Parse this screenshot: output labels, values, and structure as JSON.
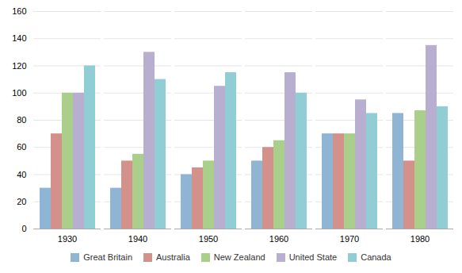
{
  "chart_data": {
    "type": "bar",
    "categories": [
      "1930",
      "1940",
      "1950",
      "1960",
      "1970",
      "1980"
    ],
    "series": [
      {
        "name": "Great Britain",
        "color": "#8fb4d4",
        "values": [
          30,
          30,
          40,
          50,
          70,
          85
        ]
      },
      {
        "name": "Australia",
        "color": "#d4908a",
        "values": [
          70,
          50,
          45,
          60,
          70,
          50
        ]
      },
      {
        "name": "New Zealand",
        "color": "#aacf8a",
        "values": [
          100,
          55,
          50,
          65,
          70,
          87
        ]
      },
      {
        "name": "United State",
        "color": "#b8aed0",
        "values": [
          100,
          130,
          105,
          115,
          95,
          135
        ]
      },
      {
        "name": "Canada",
        "color": "#90cdd4",
        "values": [
          120,
          110,
          115,
          100,
          85,
          90
        ]
      }
    ],
    "ylim": [
      0,
      160
    ],
    "yticks": [
      0,
      20,
      40,
      60,
      80,
      100,
      120,
      140,
      160
    ],
    "grid": true,
    "legend": "bottom"
  }
}
